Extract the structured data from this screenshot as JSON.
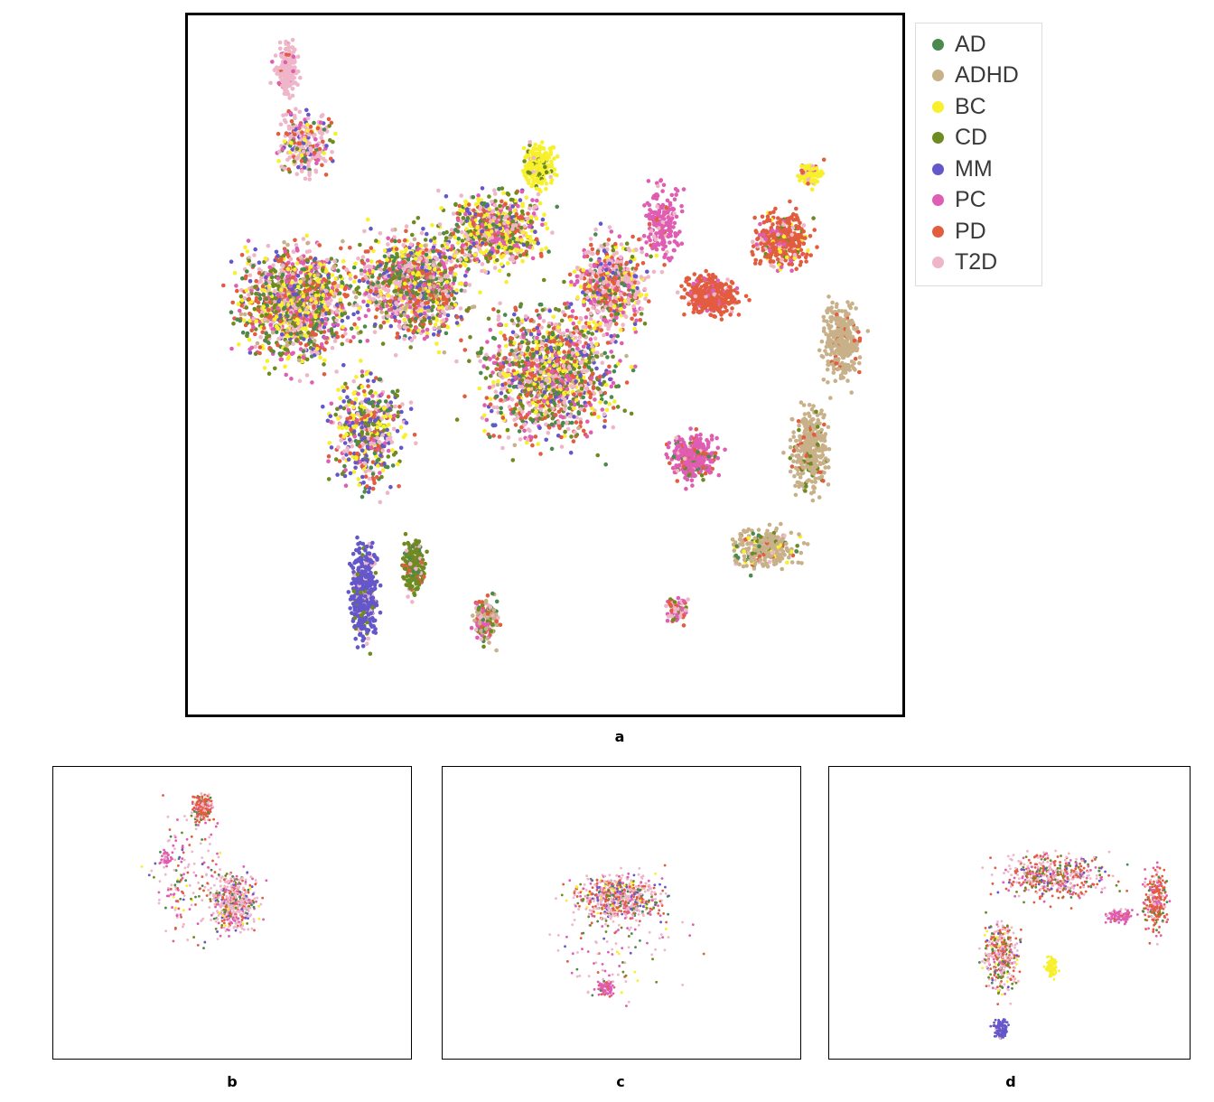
{
  "chart_data": [
    {
      "type": "scatter",
      "panel": "a",
      "caption": "a",
      "legend_position": "top-right",
      "series": [
        {
          "name": "AD",
          "color": "#4a8a4e"
        },
        {
          "name": "ADHD",
          "color": "#c8b088"
        },
        {
          "name": "BC",
          "color": "#f7f02a"
        },
        {
          "name": "CD",
          "color": "#6e8b22"
        },
        {
          "name": "MM",
          "color": "#6457c9"
        },
        {
          "name": "PC",
          "color": "#df5db2"
        },
        {
          "name": "PD",
          "color": "#e25d40"
        },
        {
          "name": "T2D",
          "color": "#eeb6c8"
        }
      ],
      "grid": false,
      "axes_shown": false
    },
    {
      "type": "scatter",
      "panel": "b",
      "caption": "b",
      "grid": false,
      "axes_shown": false
    },
    {
      "type": "scatter",
      "panel": "c",
      "caption": "c",
      "grid": false,
      "axes_shown": false
    },
    {
      "type": "scatter",
      "panel": "d",
      "caption": "d",
      "grid": false,
      "axes_shown": false
    }
  ]
}
